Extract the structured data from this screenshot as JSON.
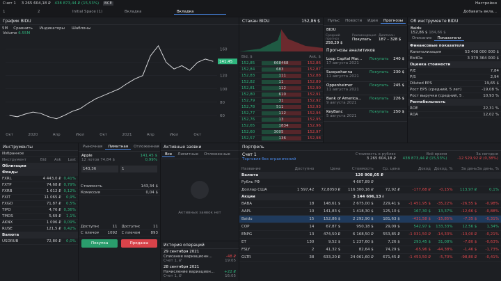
{
  "top": {
    "account": "Счет 1",
    "balance": "3 265 604,18 ₽",
    "change": "438 873,44 ₽ (15,53%)",
    "filter": "ВСЕ",
    "settings": "Настройки",
    "add_tab": "Добавить вкла..."
  },
  "tabs": [
    "1",
    "2",
    "Initial Space (1)",
    "Вкладка",
    "Вкладка"
  ],
  "chart_panel": {
    "title": "График BIDU",
    "interval": "5M",
    "tools": [
      "Сравнить",
      "Индикаторы",
      "Шаблоны"
    ],
    "volume": "Volume",
    "volume_value": "6.55M"
  },
  "chart_data": {
    "type": "line",
    "categories": [
      "Окт",
      null,
      null,
      "2020",
      null,
      null,
      "Апр",
      null,
      null,
      "Июл",
      null,
      null,
      "Окт",
      null,
      null,
      "2021",
      null,
      null,
      "Апр",
      null,
      null,
      "Июл",
      null,
      null,
      "Окт",
      null,
      null
    ],
    "values": [
      60,
      58,
      62,
      65,
      63,
      58,
      55,
      60,
      66,
      70,
      78,
      85,
      90,
      95,
      100,
      108,
      115,
      120,
      150,
      165,
      140,
      130,
      135,
      128,
      140,
      145,
      141.45
    ],
    "color": "#d7d8db",
    "ylim": [
      40,
      170
    ],
    "yticks": [
      60,
      80,
      100,
      120,
      140,
      160
    ],
    "grid": true
  },
  "orderbook": {
    "title": "Стакан BIDU",
    "price": "152,86 $",
    "header": [
      "Bid, $",
      "Ask, $"
    ],
    "rows": [
      [
        "152,85",
        "668",
        "468",
        "152,86"
      ],
      [
        "152,84",
        "68",
        "3",
        "152,87"
      ],
      [
        "152,83",
        "1",
        "11",
        "152,88"
      ],
      [
        "152,82",
        "1",
        "1",
        "152,89"
      ],
      [
        "152,81",
        "1",
        "12",
        "152,90"
      ],
      [
        "152,80",
        "6",
        "10",
        "152,91"
      ],
      [
        "152,79",
        "3",
        "1",
        "152,92"
      ],
      [
        "152,78",
        "51",
        "1",
        "152,93"
      ],
      [
        "152,77",
        "1",
        "12",
        "152,94"
      ],
      [
        "152,76",
        "1",
        "3",
        "152,95"
      ],
      [
        "152,65",
        "1",
        "834",
        "152,96"
      ],
      [
        "152,60",
        "300",
        "5",
        "152,97"
      ],
      [
        "152,57",
        "1",
        "36",
        "152,98"
      ],
      [
        "152,56",
        "1",
        "3",
        "152,99"
      ]
    ]
  },
  "pulse": {
    "tabs": [
      "Пульс",
      "Новости",
      "Идеи",
      "Прогнозы"
    ],
    "ticker": "BIDU",
    "stats": [
      [
        "Средний прогноз",
        "258,29 $"
      ],
      [
        "Рекомендация",
        "Покупать"
      ],
      [
        "Диапазон",
        "187 – 328 $"
      ]
    ],
    "section": "Прогнозы аналитиков",
    "items": [
      [
        "Loop Capital Mar...",
        "17 августа 2021",
        "Покупать",
        "240 $"
      ],
      [
        "Susquehanna",
        "11 августа 2021",
        "Покупать",
        "230 $"
      ],
      [
        "Oppenheimer",
        "11 августа 2021",
        "Покупать",
        "245 $"
      ],
      [
        "Bank of America...",
        "9 августа 2021",
        "Покупать",
        "226 $"
      ],
      [
        "KeyBanc",
        "5 августа 2021",
        "Покупать",
        "250 $"
      ]
    ]
  },
  "about": {
    "title": "Об инструменте BIDU",
    "name": "Baidu",
    "price": "152,86 $",
    "prev": "184,66 $",
    "tabs": [
      "Описание",
      "Показатели"
    ],
    "sections": [
      {
        "name": "Финансовые показатели",
        "rows": [
          [
            "Капитализация",
            "53 408 000 000 $"
          ],
          [
            "EbitDa",
            "3 379 364 000 $"
          ]
        ]
      },
      {
        "name": "Оценка стоимости",
        "rows": [
          [
            "P/E",
            "7,84"
          ],
          [
            "P/S",
            "2,94"
          ],
          [
            "Diluted EPS",
            "19,65 $"
          ],
          [
            "Рост EPS (средний, 5 лет)",
            "-19,08 %"
          ],
          [
            "Рост выручки (средний, 5 лет)",
            "10,93 %"
          ]
        ]
      },
      {
        "name": "Рентабельность",
        "rows": [
          [
            "ROE",
            "22,31 %"
          ],
          [
            "ROA",
            "12,02 %"
          ]
        ]
      }
    ]
  },
  "instruments": {
    "title": "Инструменты",
    "list": "Избранное",
    "header": [
      "Инструмент",
      "Bid",
      "Ask",
      "Last"
    ],
    "sections": [
      {
        "name": "Облигации",
        "rows": []
      },
      {
        "name": "Фонды",
        "rows": [
          [
            "FXRL",
            "4 443,0 ₽",
            "0,41%"
          ],
          [
            "FXTP",
            "74,68 ₽",
            "0,79%"
          ],
          [
            "FXRB",
            "1 612 ₽",
            "0,12%"
          ],
          [
            "FXIT",
            "11 065 ₽",
            "0,9%"
          ],
          [
            "FXGD",
            "71,87 ₽",
            "0,5%"
          ],
          [
            "TIPO",
            "4,76 ₽",
            "0,36%"
          ],
          [
            "TMOS",
            "5,69 ₽",
            "1,1%"
          ],
          [
            "AKNX",
            "1 096 ₽",
            "0,09%"
          ],
          [
            "RUSE",
            "121,5 ₽",
            "0,42%"
          ]
        ]
      },
      {
        "name": "Валюта",
        "rows": [
          [
            "USDRUB",
            "72,80 ₽",
            "0,0%"
          ]
        ]
      }
    ]
  },
  "order": {
    "tabs": [
      "Рыночная",
      "Лимитная",
      "Отложенная"
    ],
    "name": "Apple",
    "lots": "12 лотов",
    "lot_price": "74,84 $",
    "price": "141,45 $",
    "change": "0,99%",
    "price_input": "143,36",
    "qty": "1",
    "fields": [
      [
        "Стоимость",
        "143,34 $"
      ],
      [
        "Комиссия",
        "0,04 $"
      ]
    ],
    "avail": [
      [
        [
          "Доступно",
          "11"
        ],
        [
          "С плечом",
          "1092"
        ]
      ],
      [
        [
          "Доступно",
          "11"
        ],
        [
          "С плечом",
          "893"
        ]
      ]
    ],
    "buttons": [
      "Покупка",
      "Продажа"
    ]
  },
  "orders": {
    "title": "Активные заявки",
    "tabs": [
      "Все",
      "Лимитные",
      "Отложенные"
    ],
    "empty": "Активных заявок нет"
  },
  "history": {
    "title": "История операций",
    "groups": [
      {
        "date": "29 сентября 2021",
        "items": [
          [
            "Списание вариационн...",
            "Счет 1, ₽",
            "-48 ₽",
            "19:05"
          ]
        ]
      },
      {
        "date": "28 сентября 2021",
        "items": [
          [
            "Начисление вариацион...",
            "Счет 1, ₽",
            "+22 ₽",
            "16:05"
          ]
        ]
      }
    ]
  },
  "portfolio": {
    "title": "Портфель",
    "account": "Счет 1",
    "mode": "Торговля без ограничений",
    "stats": [
      [
        "Стоимость в рублях",
        "3 265 604,18 ₽"
      ],
      [
        "Всё время",
        "438 873,44 ₽ (15,53%)"
      ],
      [
        "За сегодня",
        "-12 529,92 ₽ (0,38%)"
      ]
    ],
    "header": [
      "Название",
      "Доступно",
      "Цена",
      "Стоимость",
      "Ср. цена",
      "Доход",
      "Доход, %",
      "За день",
      "За день, %"
    ],
    "sections": [
      {
        "name": "Валюта",
        "total": "120 908,05 ₽",
        "rows": [
          [
            "Рубль РФ",
            null,
            null,
            "4 607,89 ₽",
            null,
            null,
            null,
            null,
            null
          ],
          [
            "Доллар США",
            "1 597,42",
            "72,8050 ₽",
            "116 300,16 ₽",
            "72,92 ₽",
            "-177,68 ₽",
            "-0,15%",
            "113,97 ₽",
            "0,1%"
          ]
        ]
      },
      {
        "name": "Акции",
        "total": "3 144 696,13 ₽",
        "rows": [
          [
            "BABA",
            "18",
            "148,61 $",
            "2 675,00 $",
            "229,41 $",
            "-1 451,95 $",
            "-35,22%",
            "-26,55 $",
            "-0,98%"
          ],
          [
            "AAPL",
            "10",
            "141,83 $",
            "1 418,30 $",
            "125,10 $",
            "167,30 $",
            "13,37%",
            "-12,66 $",
            "-0,88%"
          ],
          [
            "Baidu",
            "15",
            "152,86 $",
            "2 292,90 $",
            "181,63 $",
            "-431,58 $",
            "-15,85%",
            "-7,35 $",
            "-0,31%"
          ],
          [
            "COP",
            "14",
            "67,87 $",
            "950,18 $",
            "29,09 $",
            "542,97 $",
            "133,33%",
            "12,56 $",
            "1,34%"
          ],
          [
            "ENPG",
            "13",
            "474,50 ₽",
            "6 168,50 ₽",
            "553,85 ₽",
            "-1 031,50 ₽",
            "-14,33%",
            "-13,00 ₽",
            "-0,21%"
          ],
          [
            "ET",
            "130",
            "9,52 $",
            "1 237,60 $",
            "7,26 $",
            "293,45 $",
            "31,08%",
            "-7,80 $",
            "-0,63%"
          ],
          [
            "FSLY",
            "2",
            "41,32 $",
            "82,64 $",
            "74,29 $",
            "-65,96 $",
            "-44,38%",
            "-1,46 $",
            "-1,73%"
          ],
          [
            "GLTR",
            "38",
            "633,20 ₽",
            "24 061,60 ₽",
            "671,45 ₽",
            "-1 453,50 ₽",
            "-5,70%",
            "-98,80 ₽",
            "-0,41%"
          ]
        ]
      }
    ]
  }
}
